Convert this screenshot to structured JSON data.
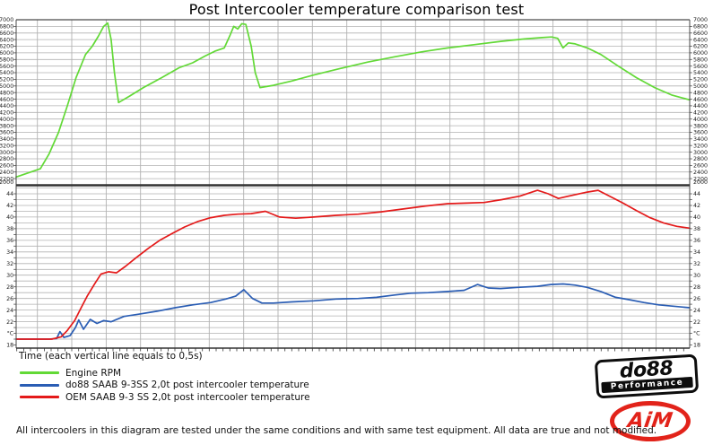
{
  "title": "Post Intercooler temperature comparison test",
  "time_axis_label": "Time (each vertical line equals to 0,5s)",
  "footer": "All intercoolers in this diagram are tested under the same conditions and with same test equipment. All data are true and not modified.",
  "legend": [
    {
      "label": "Engine RPM",
      "color": "#62d936"
    },
    {
      "label": "do88 SAAB 9-3SS 2,0t post intercooler temperature",
      "color": "#2a5db4"
    },
    {
      "label": "OEM SAAB 9-3 SS 2,0t post intercooler temperature",
      "color": "#e41a1a"
    }
  ],
  "logos": {
    "do88_word": "do88",
    "do88_sub": "Performance",
    "aim_word": "AiM"
  },
  "colors": {
    "rpm_line": "#62d936",
    "do88_line": "#2a5db4",
    "oem_line": "#e41a1a",
    "grid": "#b2b2b2",
    "border": "#4a4a4a",
    "separator": "#333333",
    "tick_text": "#1a1a1a"
  },
  "chart_data": {
    "type": "line",
    "title": "Post Intercooler temperature comparison test",
    "xlabel": "Time (each vertical line equals to 0,5s)",
    "x_axis": {
      "vertical_lines": 19,
      "seconds_per_line": 0.5,
      "approx_total_seconds": 9.8,
      "grid": true
    },
    "panels": [
      {
        "name": "engine-rpm",
        "ylim": [
          2000,
          7000
        ],
        "grid_step": 200,
        "tick_labels": [
          "7000",
          "6800",
          "6600",
          "6400",
          "6200",
          "6000",
          "5800",
          "5600",
          "5400",
          "5200",
          "5000",
          "4800",
          "4600",
          "4400",
          "4200",
          "4000",
          "3800",
          "3600",
          "3400",
          "3200",
          "3000",
          "2800",
          "2600",
          "2400",
          "2200",
          "2000"
        ],
        "series": [
          {
            "name": "Engine RPM",
            "color": "#62d936",
            "points": [
              [
                0,
                2250
              ],
              [
                0.036,
                2500
              ],
              [
                0.049,
                2950
              ],
              [
                0.063,
                3600
              ],
              [
                0.076,
                4400
              ],
              [
                0.089,
                5250
              ],
              [
                0.103,
                5950
              ],
              [
                0.113,
                6200
              ],
              [
                0.122,
                6500
              ],
              [
                0.13,
                6800
              ],
              [
                0.136,
                6900
              ],
              [
                0.141,
                6400
              ],
              [
                0.146,
                5400
              ],
              [
                0.152,
                4500
              ],
              [
                0.169,
                4700
              ],
              [
                0.189,
                4950
              ],
              [
                0.216,
                5250
              ],
              [
                0.242,
                5550
              ],
              [
                0.262,
                5700
              ],
              [
                0.28,
                5900
              ],
              [
                0.295,
                6050
              ],
              [
                0.309,
                6150
              ],
              [
                0.318,
                6550
              ],
              [
                0.323,
                6800
              ],
              [
                0.329,
                6720
              ],
              [
                0.335,
                6880
              ],
              [
                0.341,
                6860
              ],
              [
                0.349,
                6200
              ],
              [
                0.355,
                5400
              ],
              [
                0.362,
                4950
              ],
              [
                0.382,
                5020
              ],
              [
                0.409,
                5150
              ],
              [
                0.442,
                5330
              ],
              [
                0.482,
                5530
              ],
              [
                0.522,
                5720
              ],
              [
                0.562,
                5880
              ],
              [
                0.602,
                6030
              ],
              [
                0.641,
                6150
              ],
              [
                0.681,
                6250
              ],
              [
                0.721,
                6350
              ],
              [
                0.755,
                6420
              ],
              [
                0.781,
                6460
              ],
              [
                0.795,
                6480
              ],
              [
                0.804,
                6440
              ],
              [
                0.812,
                6150
              ],
              [
                0.82,
                6300
              ],
              [
                0.83,
                6270
              ],
              [
                0.848,
                6150
              ],
              [
                0.868,
                5950
              ],
              [
                0.894,
                5600
              ],
              [
                0.921,
                5250
              ],
              [
                0.948,
                4950
              ],
              [
                0.974,
                4720
              ],
              [
                1,
                4580
              ]
            ]
          }
        ]
      },
      {
        "name": "temperature",
        "unit": "°C",
        "ylim": [
          18,
          45.5
        ],
        "grid_step": 1,
        "label_step": 2,
        "tick_labels": [
          "44",
          "42",
          "40",
          "38",
          "36",
          "34",
          "32",
          "30",
          "28",
          "26",
          "24",
          "22",
          "°C",
          "18"
        ],
        "series": [
          {
            "name": "do88 SAAB 9-3SS 2,0t post intercooler temperature",
            "color": "#2a5db4",
            "points": [
              [
                0,
                19
              ],
              [
                0.049,
                19
              ],
              [
                0.06,
                19.1
              ],
              [
                0.065,
                20.3
              ],
              [
                0.071,
                19.3
              ],
              [
                0.08,
                19.6
              ],
              [
                0.088,
                21
              ],
              [
                0.093,
                22.3
              ],
              [
                0.1,
                20.7
              ],
              [
                0.11,
                22.4
              ],
              [
                0.12,
                21.7
              ],
              [
                0.13,
                22.2
              ],
              [
                0.141,
                22
              ],
              [
                0.16,
                22.9
              ],
              [
                0.182,
                23.3
              ],
              [
                0.209,
                23.8
              ],
              [
                0.236,
                24.4
              ],
              [
                0.262,
                24.9
              ],
              [
                0.289,
                25.3
              ],
              [
                0.311,
                25.9
              ],
              [
                0.326,
                26.4
              ],
              [
                0.338,
                27.5
              ],
              [
                0.351,
                26
              ],
              [
                0.365,
                25.2
              ],
              [
                0.382,
                25.2
              ],
              [
                0.409,
                25.4
              ],
              [
                0.442,
                25.6
              ],
              [
                0.475,
                25.9
              ],
              [
                0.508,
                26
              ],
              [
                0.535,
                26.2
              ],
              [
                0.562,
                26.6
              ],
              [
                0.586,
                26.9
              ],
              [
                0.612,
                27
              ],
              [
                0.641,
                27.2
              ],
              [
                0.665,
                27.4
              ],
              [
                0.685,
                28.4
              ],
              [
                0.701,
                27.8
              ],
              [
                0.719,
                27.7
              ],
              [
                0.745,
                27.9
              ],
              [
                0.774,
                28.1
              ],
              [
                0.794,
                28.4
              ],
              [
                0.812,
                28.5
              ],
              [
                0.83,
                28.3
              ],
              [
                0.848,
                27.9
              ],
              [
                0.868,
                27.2
              ],
              [
                0.89,
                26.2
              ],
              [
                0.91,
                25.8
              ],
              [
                0.932,
                25.3
              ],
              [
                0.954,
                24.9
              ],
              [
                1,
                24.4
              ]
            ]
          },
          {
            "name": "OEM SAAB 9-3 SS 2,0t post intercooler temperature",
            "color": "#e41a1a",
            "points": [
              [
                0,
                19
              ],
              [
                0.053,
                19
              ],
              [
                0.067,
                19.4
              ],
              [
                0.076,
                20.5
              ],
              [
                0.087,
                22.2
              ],
              [
                0.096,
                24.3
              ],
              [
                0.106,
                26.5
              ],
              [
                0.117,
                28.6
              ],
              [
                0.126,
                30.2
              ],
              [
                0.137,
                30.6
              ],
              [
                0.149,
                30.4
              ],
              [
                0.162,
                31.5
              ],
              [
                0.178,
                33
              ],
              [
                0.196,
                34.6
              ],
              [
                0.213,
                36
              ],
              [
                0.232,
                37.2
              ],
              [
                0.25,
                38.3
              ],
              [
                0.269,
                39.2
              ],
              [
                0.289,
                39.9
              ],
              [
                0.309,
                40.3
              ],
              [
                0.329,
                40.5
              ],
              [
                0.349,
                40.6
              ],
              [
                0.37,
                41
              ],
              [
                0.391,
                40
              ],
              [
                0.415,
                39.8
              ],
              [
                0.442,
                40
              ],
              [
                0.475,
                40.3
              ],
              [
                0.508,
                40.5
              ],
              [
                0.542,
                40.9
              ],
              [
                0.575,
                41.4
              ],
              [
                0.608,
                41.9
              ],
              [
                0.641,
                42.3
              ],
              [
                0.668,
                42.4
              ],
              [
                0.695,
                42.5
              ],
              [
                0.721,
                43
              ],
              [
                0.748,
                43.6
              ],
              [
                0.774,
                44.6
              ],
              [
                0.79,
                44
              ],
              [
                0.805,
                43.2
              ],
              [
                0.828,
                43.8
              ],
              [
                0.848,
                44.3
              ],
              [
                0.864,
                44.6
              ],
              [
                0.881,
                43.6
              ],
              [
                0.901,
                42.4
              ],
              [
                0.921,
                41.1
              ],
              [
                0.941,
                39.9
              ],
              [
                0.961,
                39
              ],
              [
                0.981,
                38.4
              ],
              [
                1,
                38.1
              ]
            ]
          }
        ]
      }
    ],
    "legend_position": "bottom-left"
  }
}
